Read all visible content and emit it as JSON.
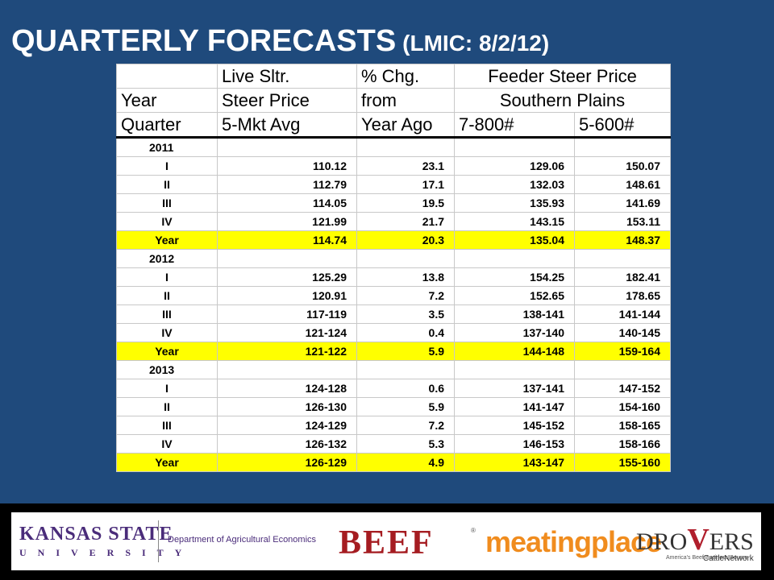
{
  "title": {
    "main": "QUARTERLY FORECASTS",
    "sub": "(LMIC: 8/2/12)"
  },
  "table": {
    "header": {
      "row1": [
        "",
        "Live Sltr.",
        "% Chg.",
        "Feeder Steer Price"
      ],
      "row2": [
        "Year",
        "Steer Price",
        "from",
        "Southern Plains"
      ],
      "row3": [
        "Quarter",
        "5-Mkt Avg",
        "Year Ago",
        "7-800#",
        "5-600#"
      ]
    },
    "years": [
      {
        "label": "2011",
        "rows": [
          [
            "I",
            "110.12",
            "23.1",
            "129.06",
            "150.07"
          ],
          [
            "II",
            "112.79",
            "17.1",
            "132.03",
            "148.61"
          ],
          [
            "III",
            "114.05",
            "19.5",
            "135.93",
            "141.69"
          ],
          [
            "IV",
            "121.99",
            "21.7",
            "143.15",
            "153.11"
          ]
        ],
        "summary": [
          "Year",
          "114.74",
          "20.3",
          "135.04",
          "148.37"
        ]
      },
      {
        "label": "2012",
        "rows": [
          [
            "I",
            "125.29",
            "13.8",
            "154.25",
            "182.41"
          ],
          [
            "II",
            "120.91",
            "7.2",
            "152.65",
            "178.65"
          ],
          [
            "III",
            "117-119",
            "3.5",
            "138-141",
            "141-144"
          ],
          [
            "IV",
            "121-124",
            "0.4",
            "137-140",
            "140-145"
          ]
        ],
        "summary": [
          "Year",
          "121-122",
          "5.9",
          "144-148",
          "159-164"
        ]
      },
      {
        "label": "2013",
        "rows": [
          [
            "I",
            "124-128",
            "0.6",
            "137-141",
            "147-152"
          ],
          [
            "II",
            "126-130",
            "5.9",
            "141-147",
            "154-160"
          ],
          [
            "III",
            "124-129",
            "7.2",
            "145-152",
            "158-165"
          ],
          [
            "IV",
            "126-132",
            "5.3",
            "146-153",
            "158-166"
          ]
        ],
        "summary": [
          "Year",
          "126-129",
          "4.9",
          "143-147",
          "155-160"
        ]
      }
    ]
  },
  "footer": {
    "ksu_name": "KANSAS STATE",
    "ksu_univ": "UNIVERSITY",
    "department": "Department of Agricultural Economics",
    "beef": "BEEF",
    "beef_mark": "®",
    "meatingplace": "meatingplace",
    "drovers_a": "DRO",
    "drovers_v": "V",
    "drovers_b": "ERS",
    "drovers_tag": "America's Beef Business Source",
    "drovers_network": "CattleNetwork"
  },
  "colors": {
    "background": "#1f4a7c",
    "highlight": "#ffff00"
  }
}
